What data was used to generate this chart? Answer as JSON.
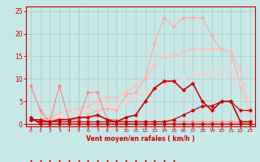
{
  "title": "",
  "xlabel": "Vent moyen/en rafales ( km/h )",
  "xlim": [
    -0.5,
    23.5
  ],
  "ylim": [
    -0.5,
    26
  ],
  "yticks": [
    0,
    5,
    10,
    15,
    20,
    25
  ],
  "xticks": [
    0,
    1,
    2,
    3,
    4,
    5,
    6,
    7,
    8,
    9,
    10,
    11,
    12,
    13,
    14,
    15,
    16,
    17,
    18,
    19,
    20,
    21,
    22,
    23
  ],
  "bg_color": "#c8e8e8",
  "grid_color": "#b0c8c8",
  "lines": [
    {
      "x": [
        0,
        1,
        2,
        3,
        4,
        5,
        6,
        7,
        8,
        9,
        10,
        11,
        12,
        13,
        14,
        15,
        16,
        17,
        18,
        19,
        20,
        21,
        22,
        23
      ],
      "y": [
        8.5,
        3,
        0.5,
        8.5,
        1,
        1,
        7,
        7,
        1,
        1,
        0.5,
        0.5,
        0.5,
        0.5,
        0.5,
        0.5,
        0.5,
        0.5,
        0.5,
        0.5,
        0.5,
        0.5,
        0.5,
        0.5
      ],
      "color": "#ff8888",
      "lw": 0.9,
      "marker": "D",
      "ms": 1.8,
      "zorder": 3
    },
    {
      "x": [
        0,
        1,
        2,
        3,
        4,
        5,
        6,
        7,
        8,
        9,
        10,
        11,
        12,
        13,
        14,
        15,
        16,
        17,
        18,
        19,
        20,
        21,
        22,
        23
      ],
      "y": [
        1.5,
        0,
        0,
        0,
        0,
        0,
        0,
        0,
        0,
        0,
        0,
        0,
        0,
        0,
        0,
        0,
        0,
        0,
        0,
        0,
        0,
        0,
        0,
        0
      ],
      "color": "#cc0000",
      "lw": 0.9,
      "marker": "D",
      "ms": 1.8,
      "zorder": 4
    },
    {
      "x": [
        0,
        1,
        2,
        3,
        4,
        5,
        6,
        7,
        8,
        9,
        10,
        11,
        12,
        13,
        14,
        15,
        16,
        17,
        18,
        19,
        20,
        21,
        22,
        23
      ],
      "y": [
        1,
        1,
        0.5,
        0.5,
        0.5,
        0.5,
        0.5,
        0.5,
        0.5,
        0.5,
        0.5,
        0.5,
        0.5,
        0.5,
        0.5,
        1,
        2,
        3,
        4,
        4,
        5,
        5,
        3,
        3
      ],
      "color": "#cc0000",
      "lw": 0.9,
      "marker": "D",
      "ms": 1.8,
      "zorder": 4
    },
    {
      "x": [
        0,
        1,
        2,
        3,
        4,
        5,
        6,
        7,
        8,
        9,
        10,
        11,
        12,
        13,
        14,
        15,
        16,
        17,
        18,
        19,
        20,
        21,
        22,
        23
      ],
      "y": [
        1,
        0.5,
        0.5,
        1,
        1,
        1.5,
        1.5,
        2,
        1,
        0.5,
        1.5,
        2,
        5,
        8,
        9.5,
        9.5,
        7.5,
        9,
        5,
        3,
        5,
        5,
        0.5,
        0.5
      ],
      "color": "#cc0000",
      "lw": 1.2,
      "marker": "D",
      "ms": 1.8,
      "zorder": 5
    },
    {
      "x": [
        0,
        1,
        2,
        3,
        4,
        5,
        6,
        7,
        8,
        9,
        10,
        11,
        12,
        13,
        14,
        15,
        16,
        17,
        18,
        19,
        20,
        21,
        22,
        23
      ],
      "y": [
        1,
        1,
        1,
        1,
        1,
        1,
        2,
        3,
        3.5,
        3,
        6.5,
        7,
        10,
        18,
        23.5,
        21.5,
        23.5,
        23.5,
        23.5,
        19.5,
        16.5,
        16,
        8.5,
        2.5
      ],
      "color": "#ffaaaa",
      "lw": 0.9,
      "marker": "D",
      "ms": 1.8,
      "zorder": 2
    },
    {
      "x": [
        0,
        1,
        2,
        3,
        4,
        5,
        6,
        7,
        8,
        9,
        10,
        11,
        12,
        13,
        14,
        15,
        16,
        17,
        18,
        19,
        20,
        21,
        22,
        23
      ],
      "y": [
        1,
        1,
        1.5,
        2.5,
        3,
        3.5,
        4,
        5,
        6,
        6,
        7,
        8.5,
        10.5,
        13,
        15,
        15,
        16,
        16.5,
        16.5,
        16.5,
        16.5,
        16,
        12,
        2.5
      ],
      "color": "#ffbbbb",
      "lw": 0.9,
      "marker": "D",
      "ms": 1.8,
      "zorder": 2
    },
    {
      "x": [
        0,
        1,
        2,
        3,
        4,
        5,
        6,
        7,
        8,
        9,
        10,
        11,
        12,
        13,
        14,
        15,
        16,
        17,
        18,
        19,
        20,
        21,
        22,
        23
      ],
      "y": [
        1,
        1,
        1,
        1.5,
        2,
        2.5,
        3,
        3.5,
        4,
        4,
        5,
        6,
        7,
        8,
        9,
        9.5,
        10,
        11,
        11,
        11.5,
        12,
        12,
        9,
        2.5
      ],
      "color": "#ffcccc",
      "lw": 0.9,
      "marker": "D",
      "ms": 1.8,
      "zorder": 2
    }
  ]
}
